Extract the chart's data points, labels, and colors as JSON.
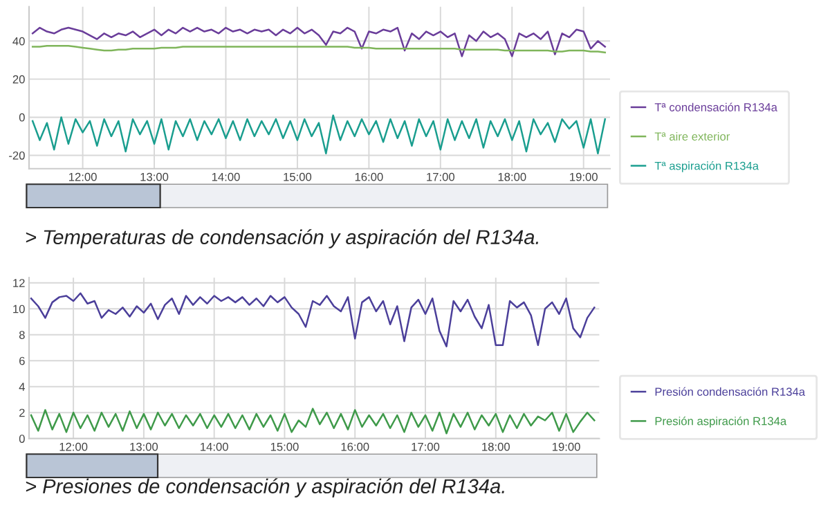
{
  "chart_data": [
    {
      "type": "line",
      "legend": "right",
      "grid": true,
      "marker": "none",
      "line_style": "solid",
      "xlim": [
        11.25,
        19.37
      ],
      "ylim": [
        -27,
        58
      ],
      "xticks": [
        {
          "value": 12,
          "label": "12:00"
        },
        {
          "value": 13,
          "label": "13:00"
        },
        {
          "value": 14,
          "label": "14:00"
        },
        {
          "value": 15,
          "label": "15:00"
        },
        {
          "value": 16,
          "label": "16:00"
        },
        {
          "value": 17,
          "label": "17:00"
        },
        {
          "value": 18,
          "label": "18:00"
        },
        {
          "value": 19,
          "label": "19:00"
        }
      ],
      "yticks": [
        -20,
        0,
        20,
        40
      ],
      "x": [
        11.3,
        11.4,
        11.5,
        11.6,
        11.7,
        11.8,
        11.9,
        12.0,
        12.1,
        12.2,
        12.3,
        12.4,
        12.5,
        12.6,
        12.7,
        12.8,
        12.9,
        13.0,
        13.1,
        13.2,
        13.3,
        13.4,
        13.5,
        13.6,
        13.7,
        13.8,
        13.9,
        14.0,
        14.1,
        14.2,
        14.3,
        14.4,
        14.5,
        14.6,
        14.7,
        14.8,
        14.9,
        15.0,
        15.1,
        15.2,
        15.3,
        15.4,
        15.5,
        15.6,
        15.7,
        15.8,
        15.9,
        16.0,
        16.1,
        16.2,
        16.3,
        16.4,
        16.5,
        16.6,
        16.7,
        16.8,
        16.9,
        17.0,
        17.1,
        17.2,
        17.3,
        17.4,
        17.5,
        17.6,
        17.7,
        17.8,
        17.9,
        18.0,
        18.1,
        18.2,
        18.3,
        18.4,
        18.5,
        18.6,
        18.7,
        18.8,
        18.9,
        19.0,
        19.1,
        19.2,
        19.3
      ],
      "series": [
        {
          "name": "Tª condensación R134a",
          "color": "#6a3d9a",
          "values": [
            44,
            47,
            45,
            44,
            46,
            47,
            46,
            45,
            43,
            41,
            44,
            42,
            44,
            43,
            45,
            42,
            44,
            46,
            43,
            46,
            44,
            47,
            45,
            47,
            45,
            46,
            44,
            47,
            45,
            46,
            44,
            46,
            45,
            46,
            43,
            46,
            44,
            47,
            44,
            46,
            43,
            38,
            45,
            44,
            47,
            45,
            36,
            45,
            44,
            46,
            45,
            47,
            35,
            44,
            41,
            45,
            43,
            45,
            42,
            44,
            32,
            43,
            40,
            45,
            42,
            44,
            41,
            32,
            44,
            42,
            44,
            41,
            45,
            33,
            44,
            42,
            46,
            45,
            36,
            40,
            37
          ]
        },
        {
          "name": "Tª aire exterior",
          "color": "#7fb55a",
          "values": [
            37,
            37,
            37.5,
            37.5,
            37.5,
            37.5,
            37,
            36.5,
            36,
            35.5,
            35,
            35,
            35.5,
            35.5,
            36,
            36,
            36,
            36,
            36.5,
            36.5,
            36.5,
            37,
            37,
            37,
            37,
            37,
            37,
            37,
            37,
            37,
            37,
            37,
            37,
            37,
            37,
            37,
            37,
            37,
            37,
            37,
            37,
            37,
            37,
            37,
            37,
            36.5,
            36.5,
            36.5,
            36,
            36,
            36,
            36,
            36,
            36,
            36,
            36,
            36,
            36,
            36,
            36,
            35.5,
            35.5,
            35.5,
            35.5,
            35.5,
            35.5,
            35,
            35,
            35,
            35,
            35,
            35,
            35,
            34.5,
            34.5,
            35,
            35,
            35,
            34.5,
            34.5,
            34
          ]
        },
        {
          "name": "Tª aspiración R134a",
          "color": "#1a9e8f",
          "values": [
            -2,
            -12,
            -3,
            -17,
            0,
            -14,
            -1,
            -8,
            -2,
            -15,
            -1,
            -10,
            -2,
            -18,
            -1,
            -9,
            -2,
            -14,
            -1,
            -17,
            -2,
            -10,
            -1,
            -12,
            -2,
            -9,
            -1,
            -11,
            -2,
            -12,
            -1,
            -10,
            -2,
            -9,
            -1,
            -11,
            -2,
            -12,
            -1,
            -10,
            -3,
            -19,
            1,
            -12,
            -2,
            -10,
            -1,
            -9,
            -2,
            -13,
            -1,
            -11,
            -2,
            -15,
            -1,
            -10,
            -2,
            -17,
            -1,
            -12,
            -2,
            -11,
            -1,
            -16,
            -2,
            -10,
            -1,
            -12,
            -2,
            -18,
            -1,
            -9,
            -3,
            -13,
            -1,
            -6,
            -2,
            -16,
            -1,
            -19,
            -1
          ]
        }
      ],
      "annotations": [
        "> Temperaturas de condensación y aspiración del R134a."
      ]
    },
    {
      "type": "line",
      "legend": "right",
      "grid": true,
      "marker": "none",
      "line_style": "solid",
      "xlim": [
        11.37,
        19.47
      ],
      "ylim": [
        0,
        12.4
      ],
      "xticks": [
        {
          "value": 12,
          "label": "12:00"
        },
        {
          "value": 13,
          "label": "13:00"
        },
        {
          "value": 14,
          "label": "14:00"
        },
        {
          "value": 15,
          "label": "15:00"
        },
        {
          "value": 16,
          "label": "16:00"
        },
        {
          "value": 17,
          "label": "17:00"
        },
        {
          "value": 18,
          "label": "18:00"
        },
        {
          "value": 19,
          "label": "19:00"
        }
      ],
      "yticks": [
        0,
        2,
        4,
        6,
        8,
        10,
        12
      ],
      "x": [
        11.4,
        11.5,
        11.6,
        11.7,
        11.8,
        11.9,
        12.0,
        12.1,
        12.2,
        12.3,
        12.4,
        12.5,
        12.6,
        12.7,
        12.8,
        12.9,
        13.0,
        13.1,
        13.2,
        13.3,
        13.4,
        13.5,
        13.6,
        13.7,
        13.8,
        13.9,
        14.0,
        14.1,
        14.2,
        14.3,
        14.4,
        14.5,
        14.6,
        14.7,
        14.8,
        14.9,
        15.0,
        15.1,
        15.2,
        15.3,
        15.4,
        15.5,
        15.6,
        15.7,
        15.8,
        15.9,
        16.0,
        16.1,
        16.2,
        16.3,
        16.4,
        16.5,
        16.6,
        16.7,
        16.8,
        16.9,
        17.0,
        17.1,
        17.2,
        17.3,
        17.4,
        17.5,
        17.6,
        17.7,
        17.8,
        17.9,
        18.0,
        18.1,
        18.2,
        18.3,
        18.4,
        18.5,
        18.6,
        18.7,
        18.8,
        18.9,
        19.0,
        19.1,
        19.2,
        19.3,
        19.4
      ],
      "series": [
        {
          "name": "Presión condensación R134a",
          "color": "#4b3f9a",
          "values": [
            10.8,
            10.2,
            9.3,
            10.5,
            10.9,
            11.0,
            10.6,
            11.2,
            10.4,
            10.6,
            9.3,
            9.9,
            9.6,
            10.1,
            9.4,
            10.2,
            9.7,
            10.4,
            9.2,
            10.3,
            10.8,
            9.6,
            11.0,
            10.3,
            10.9,
            10.4,
            11.0,
            10.6,
            10.9,
            10.5,
            10.9,
            10.3,
            10.8,
            10.2,
            11.0,
            10.5,
            10.9,
            10.1,
            9.6,
            8.6,
            10.6,
            10.3,
            11.0,
            10.2,
            9.8,
            10.9,
            7.7,
            10.5,
            10.9,
            9.8,
            10.6,
            8.8,
            10.2,
            7.5,
            10.1,
            10.7,
            9.6,
            10.8,
            8.3,
            7.1,
            10.6,
            9.8,
            10.7,
            9.4,
            8.5,
            10.3,
            7.2,
            7.2,
            10.6,
            10.1,
            10.5,
            9.5,
            7.2,
            10.0,
            10.5,
            9.6,
            10.8,
            8.5,
            7.8,
            9.3,
            10.1
          ]
        },
        {
          "name": "Presión aspiración R134a",
          "color": "#3f9a4a",
          "values": [
            1.8,
            0.6,
            2.2,
            0.7,
            1.9,
            0.5,
            2.0,
            0.8,
            1.8,
            0.6,
            2.0,
            0.9,
            1.9,
            0.6,
            2.1,
            0.8,
            1.9,
            0.7,
            2.0,
            1.0,
            1.9,
            0.8,
            1.8,
            1.0,
            1.9,
            0.8,
            1.8,
            0.9,
            1.9,
            0.8,
            1.8,
            0.7,
            1.9,
            0.9,
            1.8,
            0.6,
            1.9,
            0.5,
            1.4,
            0.9,
            2.3,
            1.1,
            2.0,
            0.8,
            1.9,
            0.7,
            2.2,
            0.9,
            1.8,
            1.0,
            1.9,
            0.8,
            1.8,
            0.5,
            2.0,
            0.9,
            1.8,
            0.6,
            2.0,
            0.4,
            1.9,
            0.9,
            2.0,
            0.7,
            1.8,
            1.0,
            1.9,
            0.5,
            1.8,
            0.8,
            1.9,
            1.0,
            1.7,
            1.4,
            2.0,
            0.6,
            1.9,
            0.5,
            1.3,
            2.0,
            1.4
          ]
        }
      ],
      "annotations": [
        "> Presiones de condensación y aspiración del R134a."
      ]
    }
  ]
}
